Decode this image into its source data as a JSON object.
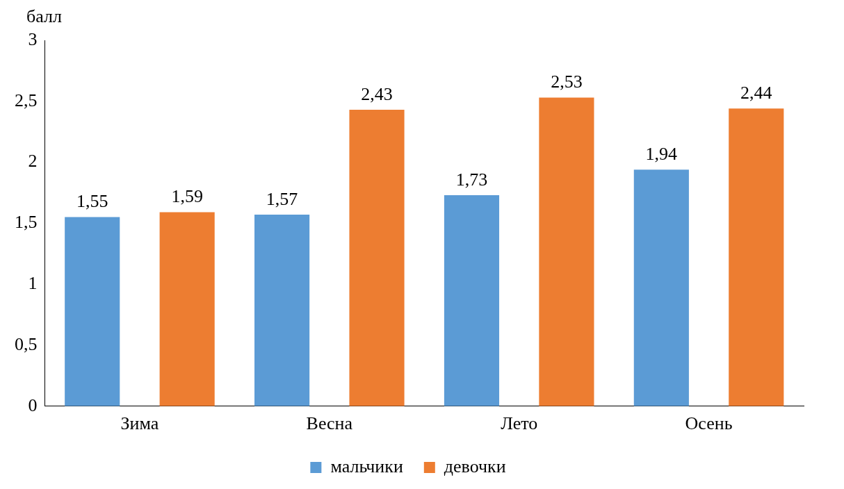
{
  "chart_data": {
    "type": "bar",
    "ylabel": "балл",
    "categories": [
      "Зима",
      "Весна",
      "Лето",
      "Осень"
    ],
    "series": [
      {
        "name": "мальчики",
        "color": "#5b9bd5",
        "values": [
          1.55,
          1.57,
          1.73,
          1.94
        ],
        "value_labels": [
          "1,55",
          "1,57",
          "1,73",
          "1,94"
        ]
      },
      {
        "name": "девочки",
        "color": "#ed7d31",
        "values": [
          1.59,
          2.43,
          2.53,
          2.44
        ],
        "value_labels": [
          "1,59",
          "2,43",
          "2,53",
          "2,44"
        ]
      }
    ],
    "ylim": [
      0,
      3
    ],
    "yticks": [
      0,
      {
        "value": 0.5,
        "label": "0,5"
      },
      1,
      {
        "value": 1.5,
        "label": "1,5"
      },
      2,
      {
        "value": 2.5,
        "label": "2,5"
      },
      3
    ],
    "legend": "bottom"
  }
}
